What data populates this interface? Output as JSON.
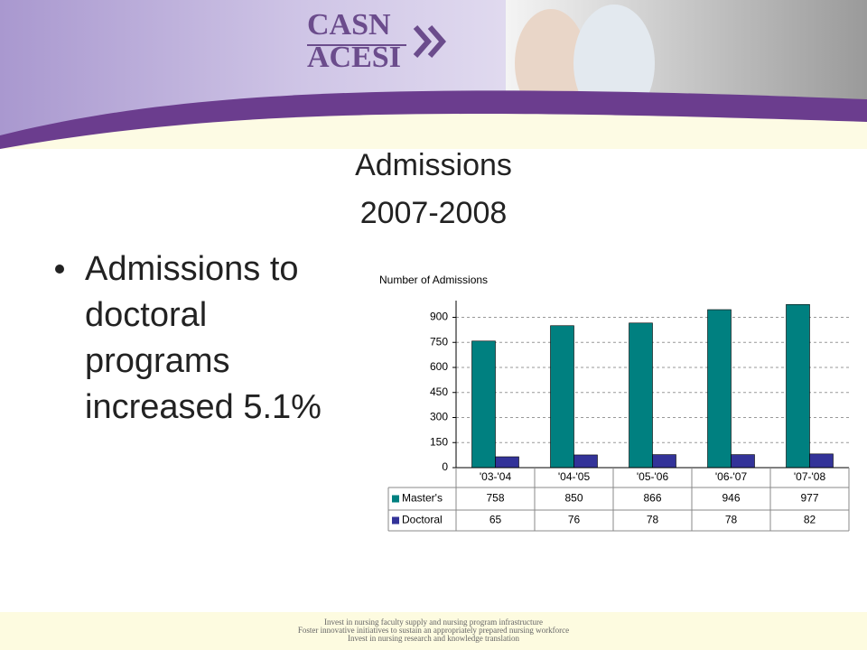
{
  "slide": {
    "logo": [
      "CASN",
      "ACESI"
    ],
    "title": [
      "Admissions",
      "2007-2008"
    ],
    "bullet": [
      "Admissions to",
      "doctoral",
      "programs",
      "increased 5.1%"
    ],
    "footer": [
      "Invest in nursing faculty supply and nursing program infrastructure",
      "Foster innovative initiatives to sustain an appropriately prepared nursing workforce",
      "Invest in nursing research and knowledge translation"
    ]
  },
  "chart_data": {
    "type": "bar",
    "y_label": "Number of Admissions",
    "categories": [
      "'03-'04",
      "'04-'05",
      "'05-'06",
      "'06-'07",
      "'07-'08"
    ],
    "series": [
      {
        "name": "Master's",
        "color": "#008080",
        "values": [
          758,
          850,
          866,
          946,
          977
        ]
      },
      {
        "name": "Doctoral",
        "color": "#333399",
        "values": [
          65,
          76,
          78,
          78,
          82
        ]
      }
    ],
    "ylim": [
      0,
      1000
    ],
    "yticks": [
      0,
      150,
      300,
      450,
      600,
      750,
      900
    ],
    "grid": true
  }
}
